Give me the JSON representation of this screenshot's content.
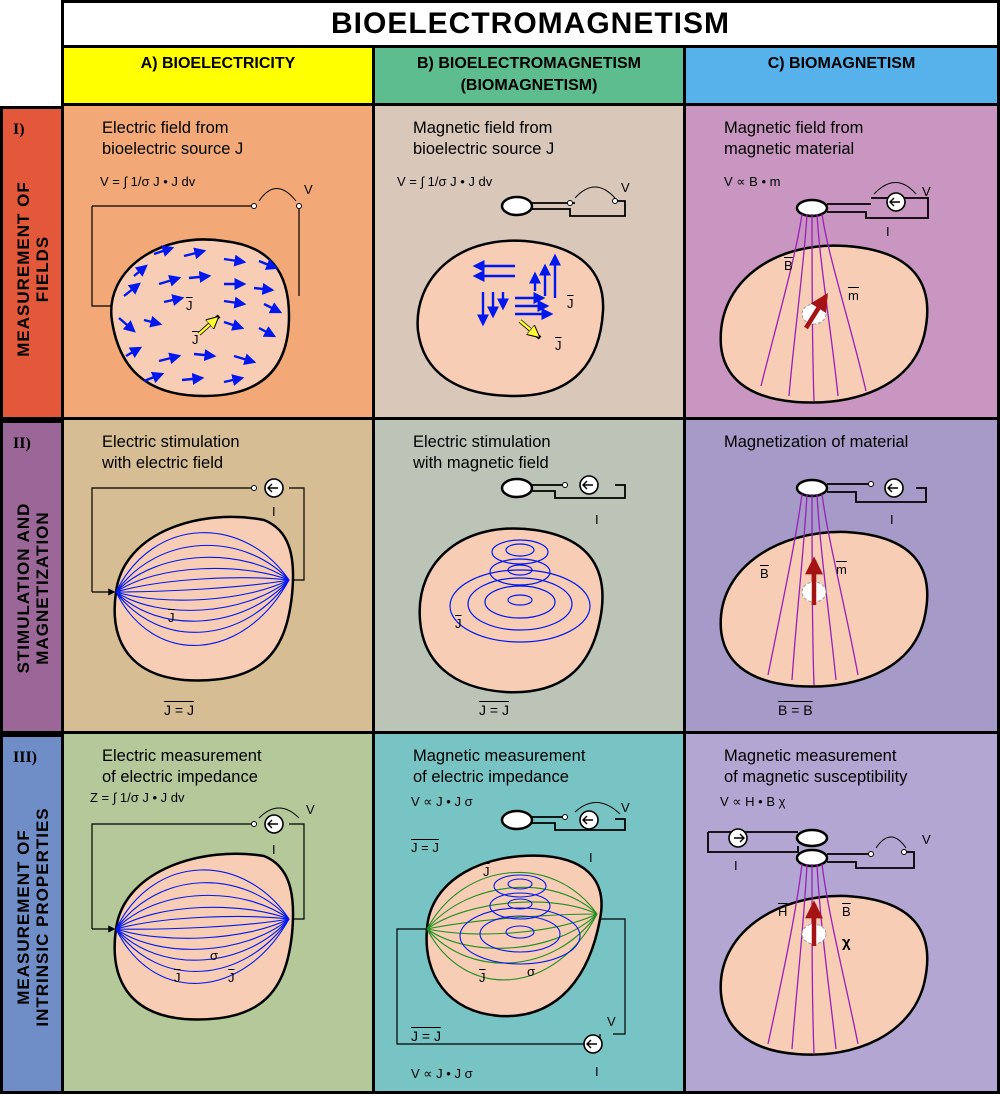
{
  "title": "BIOELECTROMAGNETISM",
  "colors": {
    "col_a_header": "#ffff00",
    "col_b_header": "#5dbd8f",
    "col_c_header": "#57b2eb",
    "row1_head": "#e3573b",
    "row2_head": "#9b6798",
    "row3_head": "#6f8ec8",
    "tissue": "#f7cdb5",
    "arrow_blue": "#0018ee",
    "arrow_yellow": "#ffff33",
    "field_purple": "#9b1fb8",
    "moment_red": "#a51414",
    "field_green": "#1f8e1f"
  },
  "columns": [
    {
      "label": "A) BIOELECTRICITY"
    },
    {
      "label": "B) BIOELECTROMAGNETISM",
      "sublabel": "(BIOMAGNETISM)"
    },
    {
      "label": "C) BIOMAGNETISM"
    }
  ],
  "rows": [
    {
      "num": "I)",
      "line1": "MEASUREMENT OF",
      "line2": "FIELDS"
    },
    {
      "num": "II)",
      "line1": "STIMULATION AND",
      "line2": "MAGNETIZATION"
    },
    {
      "num": "III)",
      "line1": "MEASUREMENT OF",
      "line2": "INTRINSIC PROPERTIES"
    }
  ],
  "cells": {
    "r1a": {
      "t1": "Electric field from",
      "t2": "bioelectric source J",
      "eq": "V = ∫ 1/σ J • J dv",
      "v_label": "V",
      "ji": "J",
      "jle": "J"
    },
    "r1b": {
      "t1": "Magnetic field from",
      "t2": "bioelectric source J",
      "eq": "V = ∫ 1/σ J • J dv",
      "v_label": "V",
      "jlm": "J",
      "ji": "J"
    },
    "r1c": {
      "t1": "Magnetic field from",
      "t2": "magnetic material",
      "eq": "V ∝ B • m",
      "v_label": "V",
      "ir": "I",
      "br": "B",
      "m": "m"
    },
    "r2a": {
      "t1": "Electric stimulation",
      "t2": "with electric field",
      "istim": "I",
      "jstim": "J",
      "bottom": "J = J"
    },
    "r2b": {
      "t1": "Electric stimulation",
      "t2": "with magnetic field",
      "istim": "I",
      "jstim": "J",
      "bottom": "J = J"
    },
    "r2c": {
      "t1": "Magnetization of material",
      "imagn": "I",
      "bmagn": "B",
      "m": "m",
      "bottom": "B = B"
    },
    "r3a": {
      "t1": "Electric measurement",
      "t2": "of electric impedance",
      "eq": "Z = ∫ 1/σ J • J dv",
      "vz": "V",
      "iz": "I",
      "sigma": "σ",
      "jle": "J",
      "jli": "J"
    },
    "r3b": {
      "t1": "Magnetic measurement",
      "t2": "of electric impedance",
      "eq1": "V ∝ J • J σ",
      "eq2": "J = J",
      "vzm": "V",
      "izm": "I",
      "jzm": "J",
      "jze": "J",
      "sigma": "σ",
      "eq3": "J = J",
      "vze": "V",
      "ize": "I",
      "eq4": "V ∝ J • J σ"
    },
    "r3c": {
      "t1": "Magnetic measurement",
      "t2": "of magnetic susceptibility",
      "eq": "V ∝ H • B χ",
      "vz": "V",
      "ith": "I",
      "hth": "H",
      "br": "B",
      "chi": "χ"
    }
  }
}
